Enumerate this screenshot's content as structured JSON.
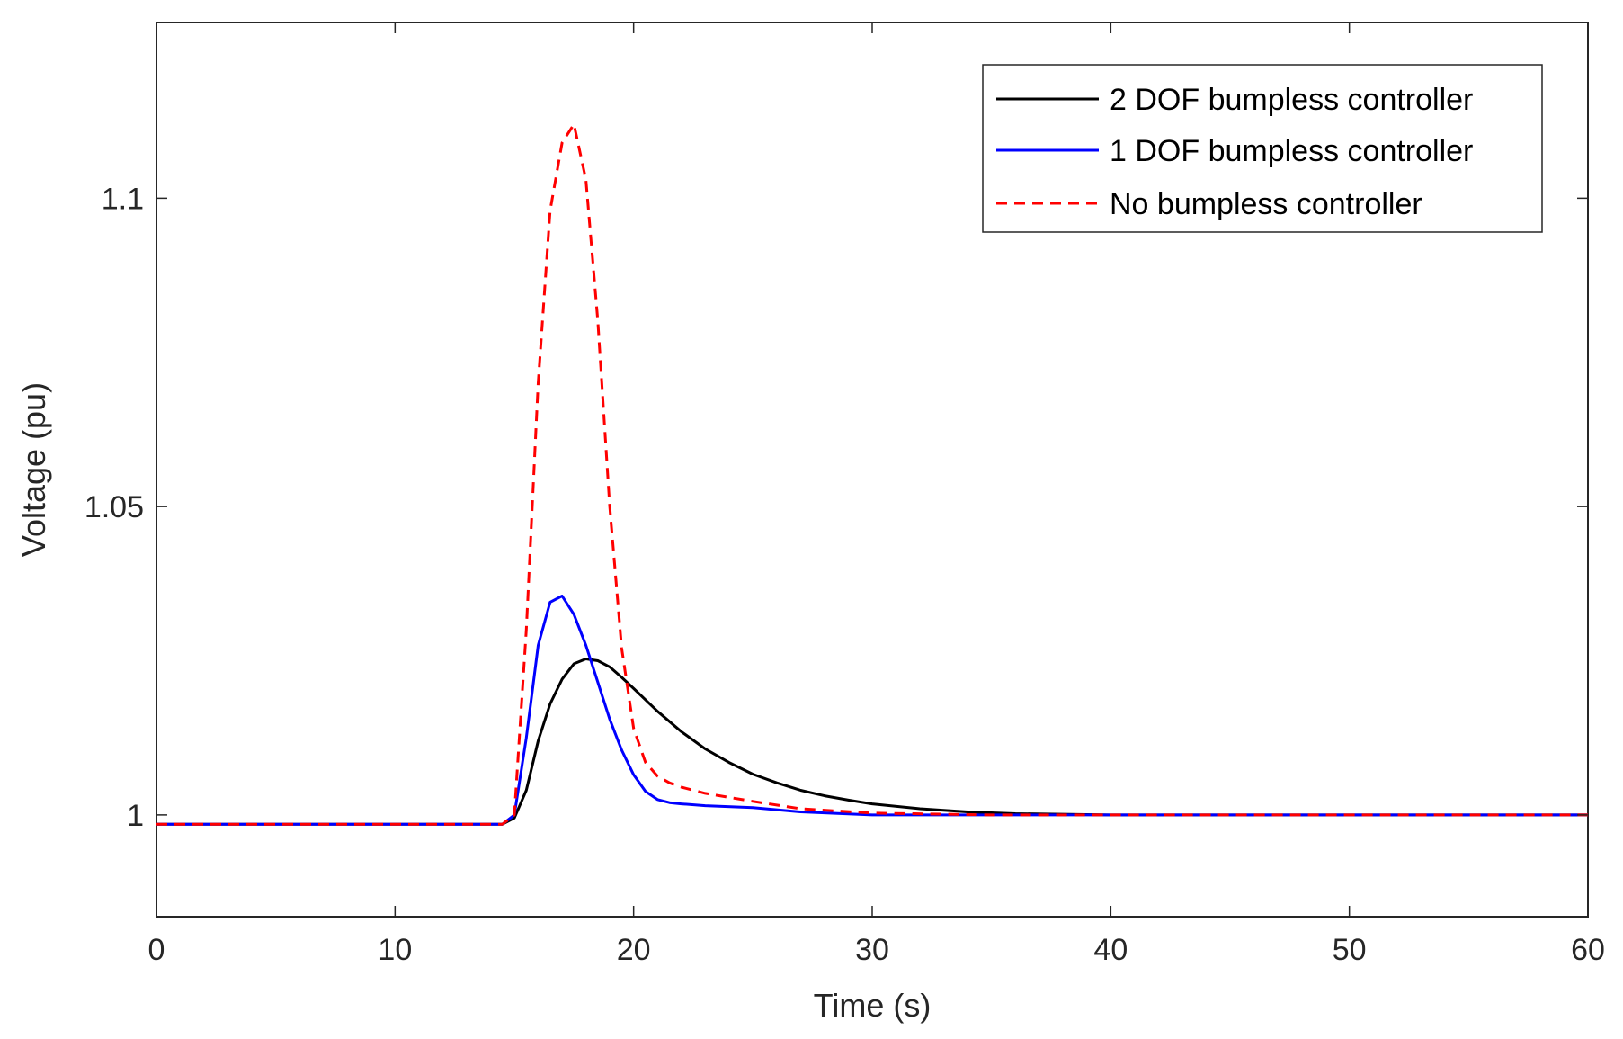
{
  "chart_data": {
    "type": "line",
    "title": "",
    "xlabel": "Time (s)",
    "ylabel": "Voltage (pu)",
    "xlim": [
      0,
      60
    ],
    "ylim": [
      0.9835,
      1.1285
    ],
    "x_ticks": [
      0,
      10,
      20,
      30,
      40,
      50,
      60
    ],
    "x_tick_labels": [
      "0",
      "10",
      "20",
      "30",
      "40",
      "50",
      "60"
    ],
    "y_ticks": [
      1.0,
      1.05,
      1.1
    ],
    "y_tick_labels": [
      "1",
      "1.05",
      "1.1"
    ],
    "grid": false,
    "legend_position": "top-right",
    "series": [
      {
        "name": "2 DOF bumpless controller",
        "color": "#000000",
        "style": "solid",
        "x": [
          0,
          14.5,
          15,
          15.5,
          16,
          16.5,
          17,
          17.5,
          18,
          18.5,
          19,
          19.5,
          20,
          21,
          22,
          23,
          24,
          25,
          26,
          27,
          28,
          29,
          30,
          32,
          34,
          36,
          40,
          50,
          60
        ],
        "y": [
          0.9985,
          0.9985,
          0.9995,
          1.004,
          1.012,
          1.018,
          1.022,
          1.0245,
          1.0253,
          1.025,
          1.024,
          1.0223,
          1.0205,
          1.0168,
          1.0135,
          1.0107,
          1.0085,
          1.0066,
          1.0052,
          1.004,
          1.0031,
          1.0024,
          1.0018,
          1.001,
          1.0005,
          1.0002,
          1.0,
          1.0,
          1.0
        ]
      },
      {
        "name": "1 DOF bumpless controller",
        "color": "#0000ff",
        "style": "solid",
        "x": [
          0,
          14.5,
          15,
          15.5,
          16,
          16.5,
          17,
          17.5,
          18,
          18.5,
          19,
          19.5,
          20,
          20.5,
          21,
          21.5,
          22,
          23,
          25,
          27,
          30,
          35,
          60
        ],
        "y": [
          0.9985,
          0.9985,
          1.0,
          1.0125,
          1.0275,
          1.0345,
          1.0355,
          1.0325,
          1.0275,
          1.0215,
          1.0155,
          1.0105,
          1.0065,
          1.0038,
          1.0025,
          1.002,
          1.0018,
          1.0015,
          1.0012,
          1.0005,
          1.0,
          1.0,
          1.0
        ]
      },
      {
        "name": "No bumpless controller",
        "color": "#ff0000",
        "style": "dashed",
        "x": [
          0,
          14.5,
          15,
          15.5,
          16,
          16.5,
          17,
          17.5,
          18,
          18.5,
          19,
          19.5,
          20,
          20.5,
          21,
          21.5,
          22,
          23,
          25,
          27,
          30,
          35,
          60
        ],
        "y": [
          0.9985,
          0.9985,
          1.0,
          1.03,
          1.07,
          1.098,
          1.109,
          1.112,
          1.103,
          1.08,
          1.05,
          1.027,
          1.014,
          1.0085,
          1.0063,
          1.0052,
          1.0045,
          1.0035,
          1.0022,
          1.001,
          1.0003,
          1.0,
          1.0
        ]
      }
    ]
  }
}
